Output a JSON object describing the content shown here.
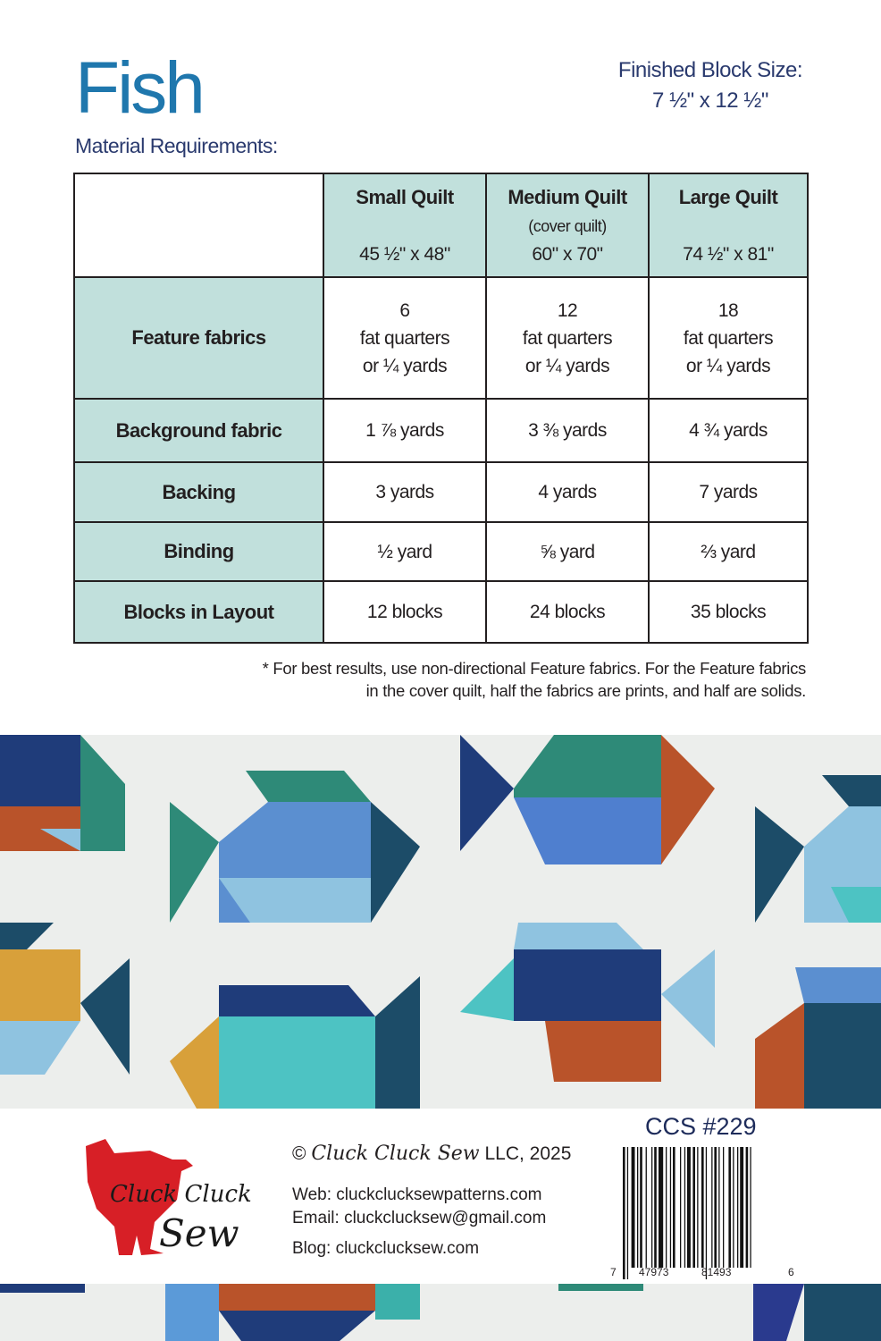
{
  "header": {
    "title": "Fish",
    "block_size_label": "Finished Block Size:",
    "block_size_value": "7 ½\" x 12 ½\"",
    "subtitle": "Material Requirements:"
  },
  "table": {
    "columns": [
      {
        "name": "Small Quilt",
        "note": "",
        "size": "45 ½\" x 48\""
      },
      {
        "name": "Medium Quilt",
        "note": "(cover quilt)",
        "size": "60\" x 70\""
      },
      {
        "name": "Large Quilt",
        "note": "",
        "size": "74 ½\" x 81\""
      }
    ],
    "rows": [
      {
        "label": "Feature fabrics",
        "cells": [
          [
            "6",
            "fat quarters",
            "or ¼ yards"
          ],
          [
            "12",
            "fat quarters",
            "or ¼ yards"
          ],
          [
            "18",
            "fat quarters",
            "or ¼ yards"
          ]
        ]
      },
      {
        "label": "Background fabric",
        "cells": [
          "1 ⅞ yards",
          "3 ⅜ yards",
          "4 ¾ yards"
        ]
      },
      {
        "label": "Backing",
        "cells": [
          "3 yards",
          "4 yards",
          "7 yards"
        ]
      },
      {
        "label": "Binding",
        "cells": [
          "½ yard",
          "⅝ yard",
          "⅔ yard"
        ]
      },
      {
        "label": "Blocks in Layout",
        "cells": [
          "12 blocks",
          "24 blocks",
          "35 blocks"
        ]
      }
    ]
  },
  "note": {
    "line1": "* For best results, use non-directional Feature fabrics.  For the Feature fabrics",
    "line2": "in the cover quilt, half the fabrics are prints, and half are solids."
  },
  "footer": {
    "logo_text": "Cluck Cluck Sew",
    "copyright_symbol": "©",
    "copyright_brand": "Cluck Cluck Sew",
    "copyright_rest": "LLC, 2025",
    "web": "Web: cluckclucksewpatterns.com",
    "email": "Email: cluckclucksew@gmail.com",
    "blog": "Blog:  cluckclucksew.com",
    "sku": "CCS #229",
    "barcode_digits": [
      "7",
      "47973",
      "81493",
      "6"
    ]
  },
  "colors": {
    "title": "#1f77ad",
    "navy": "#2a3a6e",
    "table_header": "#c1e0dc",
    "logo_red": "#d71f26"
  }
}
